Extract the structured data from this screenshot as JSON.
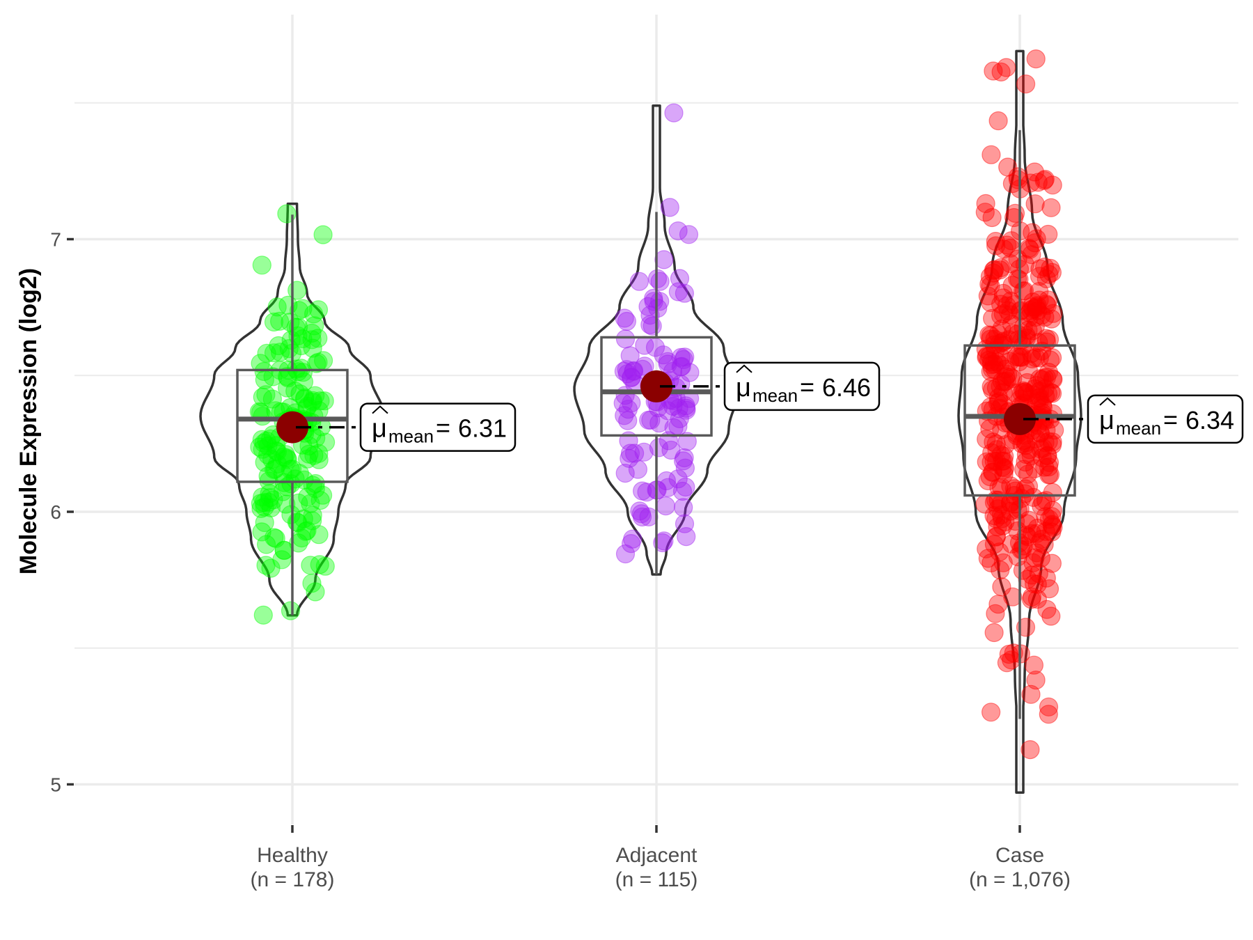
{
  "chart_data": {
    "type": "violin",
    "title": "",
    "xlabel": "",
    "ylabel": "Molecule Expression (log2)",
    "ylim": [
      4.85,
      7.85
    ],
    "y_ticks": [
      5,
      6,
      7
    ],
    "y_tick_labels": [
      "5",
      "6",
      "7"
    ],
    "grid": true,
    "legend": "none",
    "categories": [
      "Healthy",
      "Adjacent",
      "Case"
    ],
    "category_labels": [
      [
        "Healthy",
        "(n = 178)"
      ],
      [
        "Adjacent",
        "(n = 115)"
      ],
      [
        "Case",
        "(n = 1,076)"
      ]
    ],
    "mean_label_symbol": "μ",
    "mean_label_sub": "mean",
    "mean_label_eq": "=",
    "series": [
      {
        "name": "Healthy",
        "n": 178,
        "color": "#00FF00",
        "mean": 6.31,
        "mean_label": "6.31",
        "median": 6.34,
        "q1": 6.11,
        "q3": 6.52,
        "whisker_low": 5.62,
        "whisker_high": 7.09,
        "min": 5.62,
        "max": 7.13,
        "density": [
          [
            5.62,
            0.05
          ],
          [
            5.75,
            0.25
          ],
          [
            5.9,
            0.45
          ],
          [
            6.0,
            0.5
          ],
          [
            6.1,
            0.58
          ],
          [
            6.2,
            0.85
          ],
          [
            6.35,
            1.0
          ],
          [
            6.5,
            0.85
          ],
          [
            6.6,
            0.62
          ],
          [
            6.7,
            0.35
          ],
          [
            6.8,
            0.16
          ],
          [
            6.9,
            0.08
          ],
          [
            7.0,
            0.06
          ],
          [
            7.13,
            0.05
          ]
        ]
      },
      {
        "name": "Adjacent",
        "n": 115,
        "color": "#A020F0",
        "mean": 6.46,
        "mean_label": "6.46",
        "median": 6.44,
        "q1": 6.28,
        "q3": 6.64,
        "whisker_low": 5.77,
        "whisker_high": 7.1,
        "min": 5.77,
        "max": 7.49,
        "density": [
          [
            5.77,
            0.05
          ],
          [
            5.85,
            0.12
          ],
          [
            6.0,
            0.35
          ],
          [
            6.15,
            0.62
          ],
          [
            6.3,
            0.88
          ],
          [
            6.45,
            1.0
          ],
          [
            6.6,
            0.82
          ],
          [
            6.75,
            0.45
          ],
          [
            6.9,
            0.22
          ],
          [
            7.05,
            0.1
          ],
          [
            7.2,
            0.04
          ],
          [
            7.3,
            0.03
          ],
          [
            7.49,
            0.03
          ]
        ]
      },
      {
        "name": "Case",
        "n": 1076,
        "color": "#FF0000",
        "mean": 6.34,
        "mean_label": "6.34",
        "median": 6.35,
        "q1": 6.06,
        "q3": 6.61,
        "whisker_low": 5.24,
        "whisker_high": 7.4,
        "min": 4.97,
        "max": 7.69,
        "density": [
          [
            4.97,
            0.02
          ],
          [
            5.2,
            0.04
          ],
          [
            5.4,
            0.08
          ],
          [
            5.6,
            0.15
          ],
          [
            5.8,
            0.35
          ],
          [
            6.0,
            0.72
          ],
          [
            6.2,
            0.92
          ],
          [
            6.35,
            1.0
          ],
          [
            6.5,
            0.95
          ],
          [
            6.7,
            0.7
          ],
          [
            6.9,
            0.45
          ],
          [
            7.1,
            0.2
          ],
          [
            7.3,
            0.08
          ],
          [
            7.5,
            0.04
          ],
          [
            7.69,
            0.02
          ]
        ]
      }
    ]
  }
}
